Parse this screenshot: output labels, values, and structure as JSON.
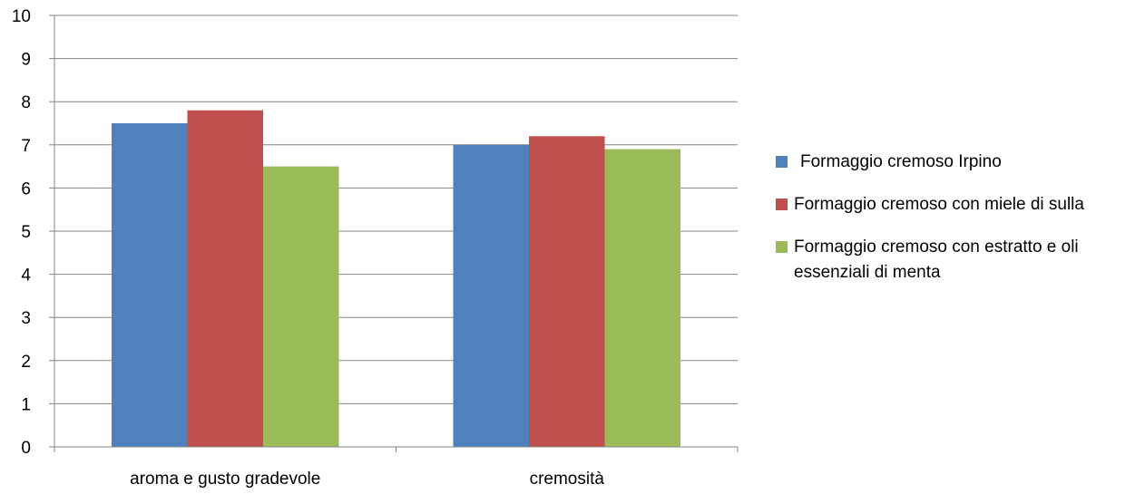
{
  "chart_data": {
    "type": "bar",
    "categories": [
      "aroma e gusto gradevole",
      "cremosità"
    ],
    "series": [
      {
        "name": "Formaggio cremoso Irpino",
        "values": [
          7.5,
          7.0
        ],
        "color": "#4F81BD"
      },
      {
        "name": "Formaggio cremoso con miele di sulla",
        "values": [
          7.8,
          7.2
        ],
        "color": "#C0504D"
      },
      {
        "name": "Formaggio cremoso con estratto e oli essenziali di menta",
        "values": [
          6.5,
          6.9
        ],
        "color": "#9BBB59"
      }
    ],
    "ylim": [
      0,
      10
    ],
    "yticks": [
      0,
      1,
      2,
      3,
      4,
      5,
      6,
      7,
      8,
      9,
      10
    ],
    "grid": true,
    "legend_position": "right"
  }
}
